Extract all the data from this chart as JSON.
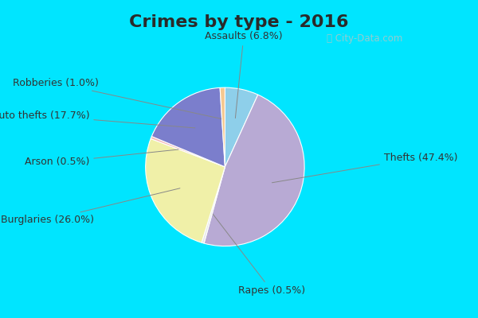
{
  "title": "Crimes by type - 2016",
  "labels": [
    "Thefts",
    "Burglaries",
    "Arson",
    "Auto thefts",
    "Robberies",
    "Assaults",
    "Rapes"
  ],
  "values": [
    47.4,
    26.0,
    0.5,
    17.7,
    1.0,
    6.8,
    0.5
  ],
  "colors": [
    "#b8aad4",
    "#f0f0a8",
    "#f4b8b8",
    "#7b7ecc",
    "#f5c890",
    "#8ecfea",
    "#e8e8e8"
  ],
  "title_fontsize": 16,
  "cyan_color": "#00e5ff",
  "bg_color": "#d8ede0",
  "label_fontsize": 9,
  "wedge_order": [
    "Assaults",
    "Thefts",
    "Rapes",
    "Burglaries",
    "Arson",
    "Auto thefts",
    "Robberies"
  ]
}
